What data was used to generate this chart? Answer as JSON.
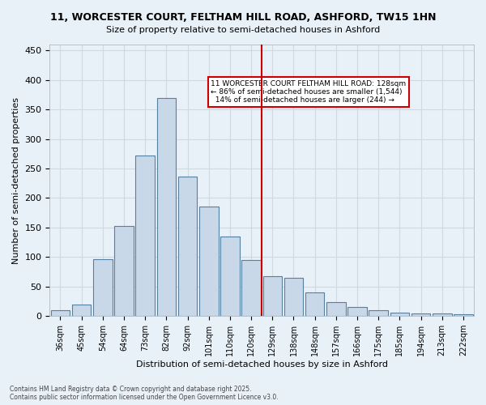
{
  "title_line1": "11, WORCESTER COURT, FELTHAM HILL ROAD, ASHFORD, TW15 1HN",
  "title_line2": "Size of property relative to semi-detached houses in Ashford",
  "xlabel": "Distribution of semi-detached houses by size in Ashford",
  "ylabel": "Number of semi-detached properties",
  "categories": [
    "36sqm",
    "45sqm",
    "54sqm",
    "64sqm",
    "73sqm",
    "82sqm",
    "92sqm",
    "101sqm",
    "110sqm",
    "120sqm",
    "129sqm",
    "138sqm",
    "148sqm",
    "157sqm",
    "166sqm",
    "175sqm",
    "185sqm",
    "194sqm",
    "213sqm",
    "222sqm"
  ],
  "values": [
    10,
    19,
    96,
    152,
    272,
    370,
    237,
    186,
    135,
    95,
    68,
    65,
    40,
    23,
    16,
    10,
    6,
    5,
    5,
    3
  ],
  "bar_color": "#c8d8e8",
  "bar_edge_color": "#5580a0",
  "property_size": 128,
  "property_bin_index": 10,
  "vline_x": 10,
  "annotation_text": "11 WORCESTER COURT FELTHAM HILL ROAD: 128sqm\n← 86% of semi-detached houses are smaller (1,544)\n  14% of semi-detached houses are larger (244) →",
  "annotation_box_color": "#ffffff",
  "annotation_box_edge_color": "#cc0000",
  "vline_color": "#cc0000",
  "grid_color": "#d0d8e0",
  "background_color": "#e8f0f8",
  "footer_text": "Contains HM Land Registry data © Crown copyright and database right 2025.\nContains public sector information licensed under the Open Government Licence v3.0.",
  "ylim": [
    0,
    460
  ],
  "yticks": [
    0,
    50,
    100,
    150,
    200,
    250,
    300,
    350,
    400,
    450
  ]
}
